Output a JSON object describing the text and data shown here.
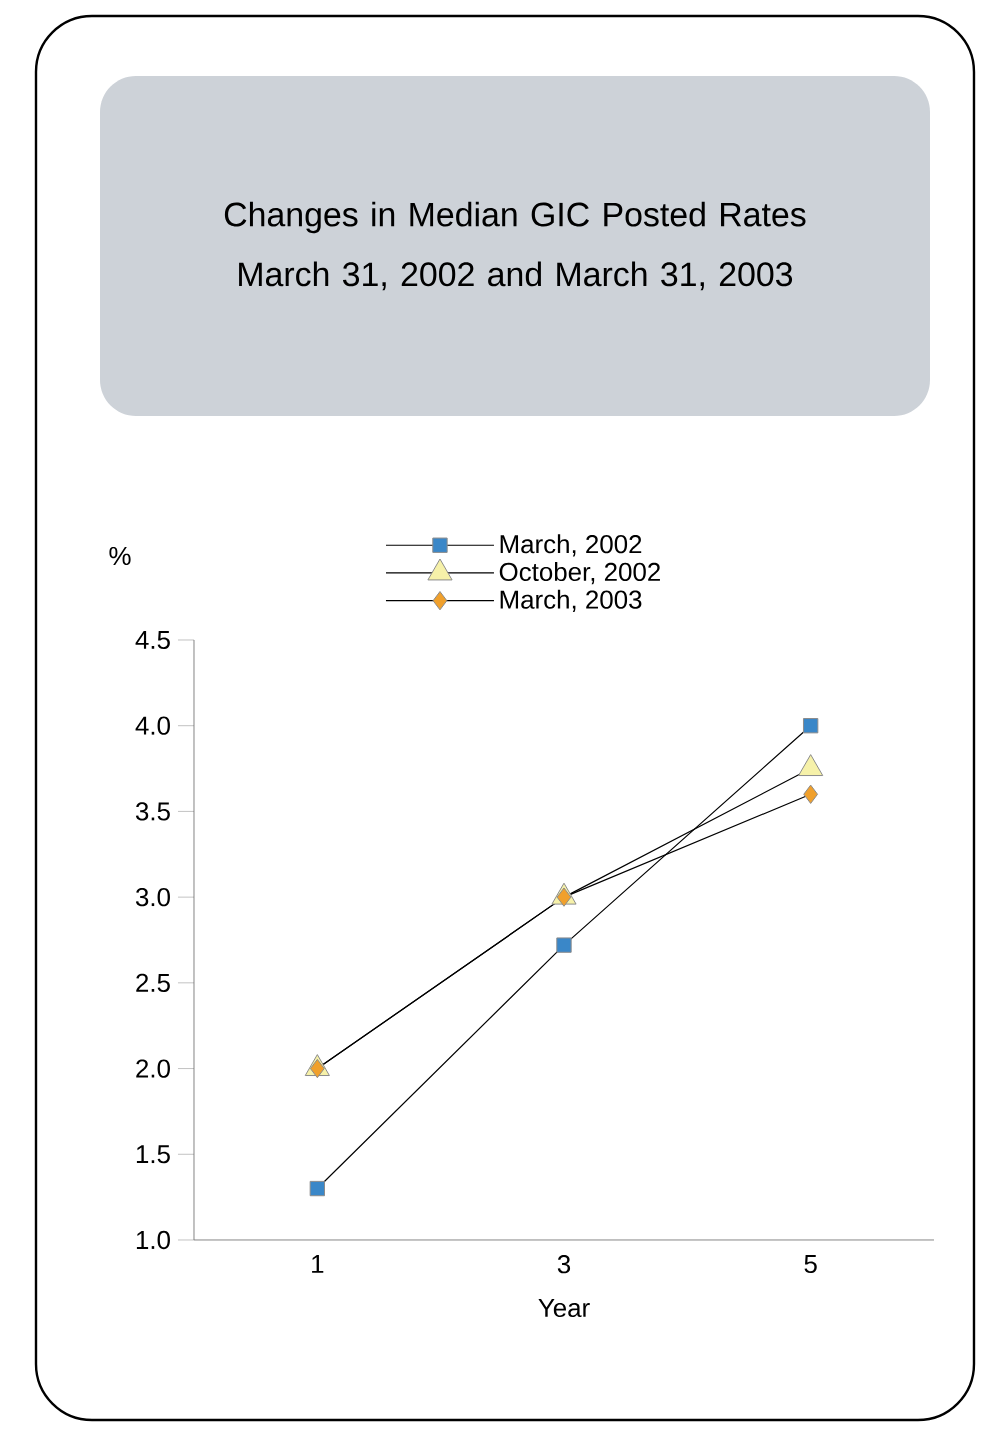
{
  "chart_data": {
    "type": "line",
    "title": "Changes in Median GIC Posted Rates",
    "subtitle": "March 31, 2002 and March 31, 2003",
    "xlabel": "Year",
    "ylabel": "%",
    "categories": [
      "1",
      "3",
      "5"
    ],
    "series": [
      {
        "name": "March, 2002",
        "color": "#3a87c8",
        "marker": "square",
        "values": [
          1.3,
          2.72,
          4.0
        ]
      },
      {
        "name": "October, 2002",
        "color": "#f6f1a9",
        "marker": "triangle",
        "values": [
          2.0,
          3.0,
          3.75
        ]
      },
      {
        "name": "March, 2003",
        "color": "#f0a02c",
        "marker": "diamond",
        "values": [
          2.0,
          3.0,
          3.6
        ]
      }
    ],
    "ylim": [
      1,
      4.5
    ],
    "yticks": [
      {
        "value": 1,
        "label": "1.0"
      },
      {
        "value": 1.5,
        "label": "1.5"
      },
      {
        "value": 2,
        "label": "2.0"
      },
      {
        "value": 2.5,
        "label": "2.5"
      },
      {
        "value": 3,
        "label": "3.0"
      },
      {
        "value": 3.5,
        "label": "3.5"
      },
      {
        "value": 4,
        "label": "4.0"
      },
      {
        "value": 4.5,
        "label": "4.5"
      }
    ],
    "legend": "top",
    "grid": false,
    "line_style": "solid"
  }
}
